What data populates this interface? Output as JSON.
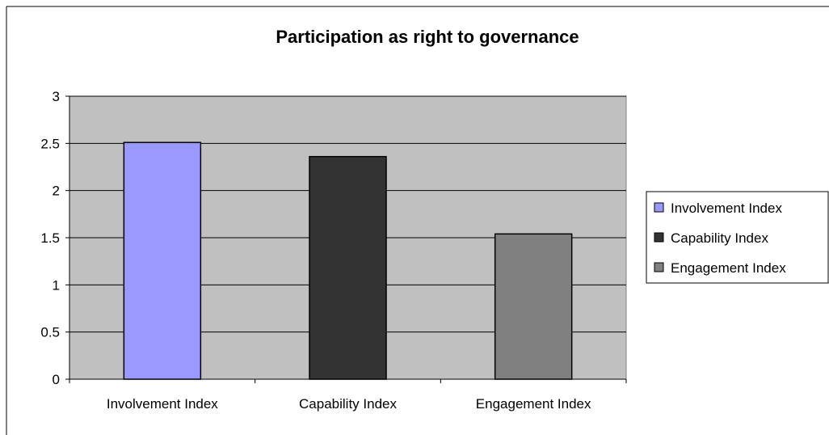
{
  "chart_data": {
    "type": "bar",
    "title": "Participation as right to governance",
    "categories": [
      "Involvement Index",
      "Capability Index",
      "Engagement Index"
    ],
    "values": [
      2.51,
      2.36,
      1.54
    ],
    "colors": [
      "#9999FF",
      "#333333",
      "#808080"
    ],
    "ylim": [
      0,
      3
    ],
    "yticks": [
      0,
      0.5,
      1,
      1.5,
      2,
      2.5,
      3
    ],
    "ytick_labels": [
      "0",
      "0.5",
      "1",
      "1.5",
      "2",
      "2.5",
      "3"
    ],
    "grid": true,
    "plot_background": "#C0C0C0",
    "legend": {
      "position": "right",
      "entries": [
        "Involvement Index",
        "Capability Index",
        "Engagement Index"
      ]
    },
    "xlabel": "",
    "ylabel": ""
  }
}
